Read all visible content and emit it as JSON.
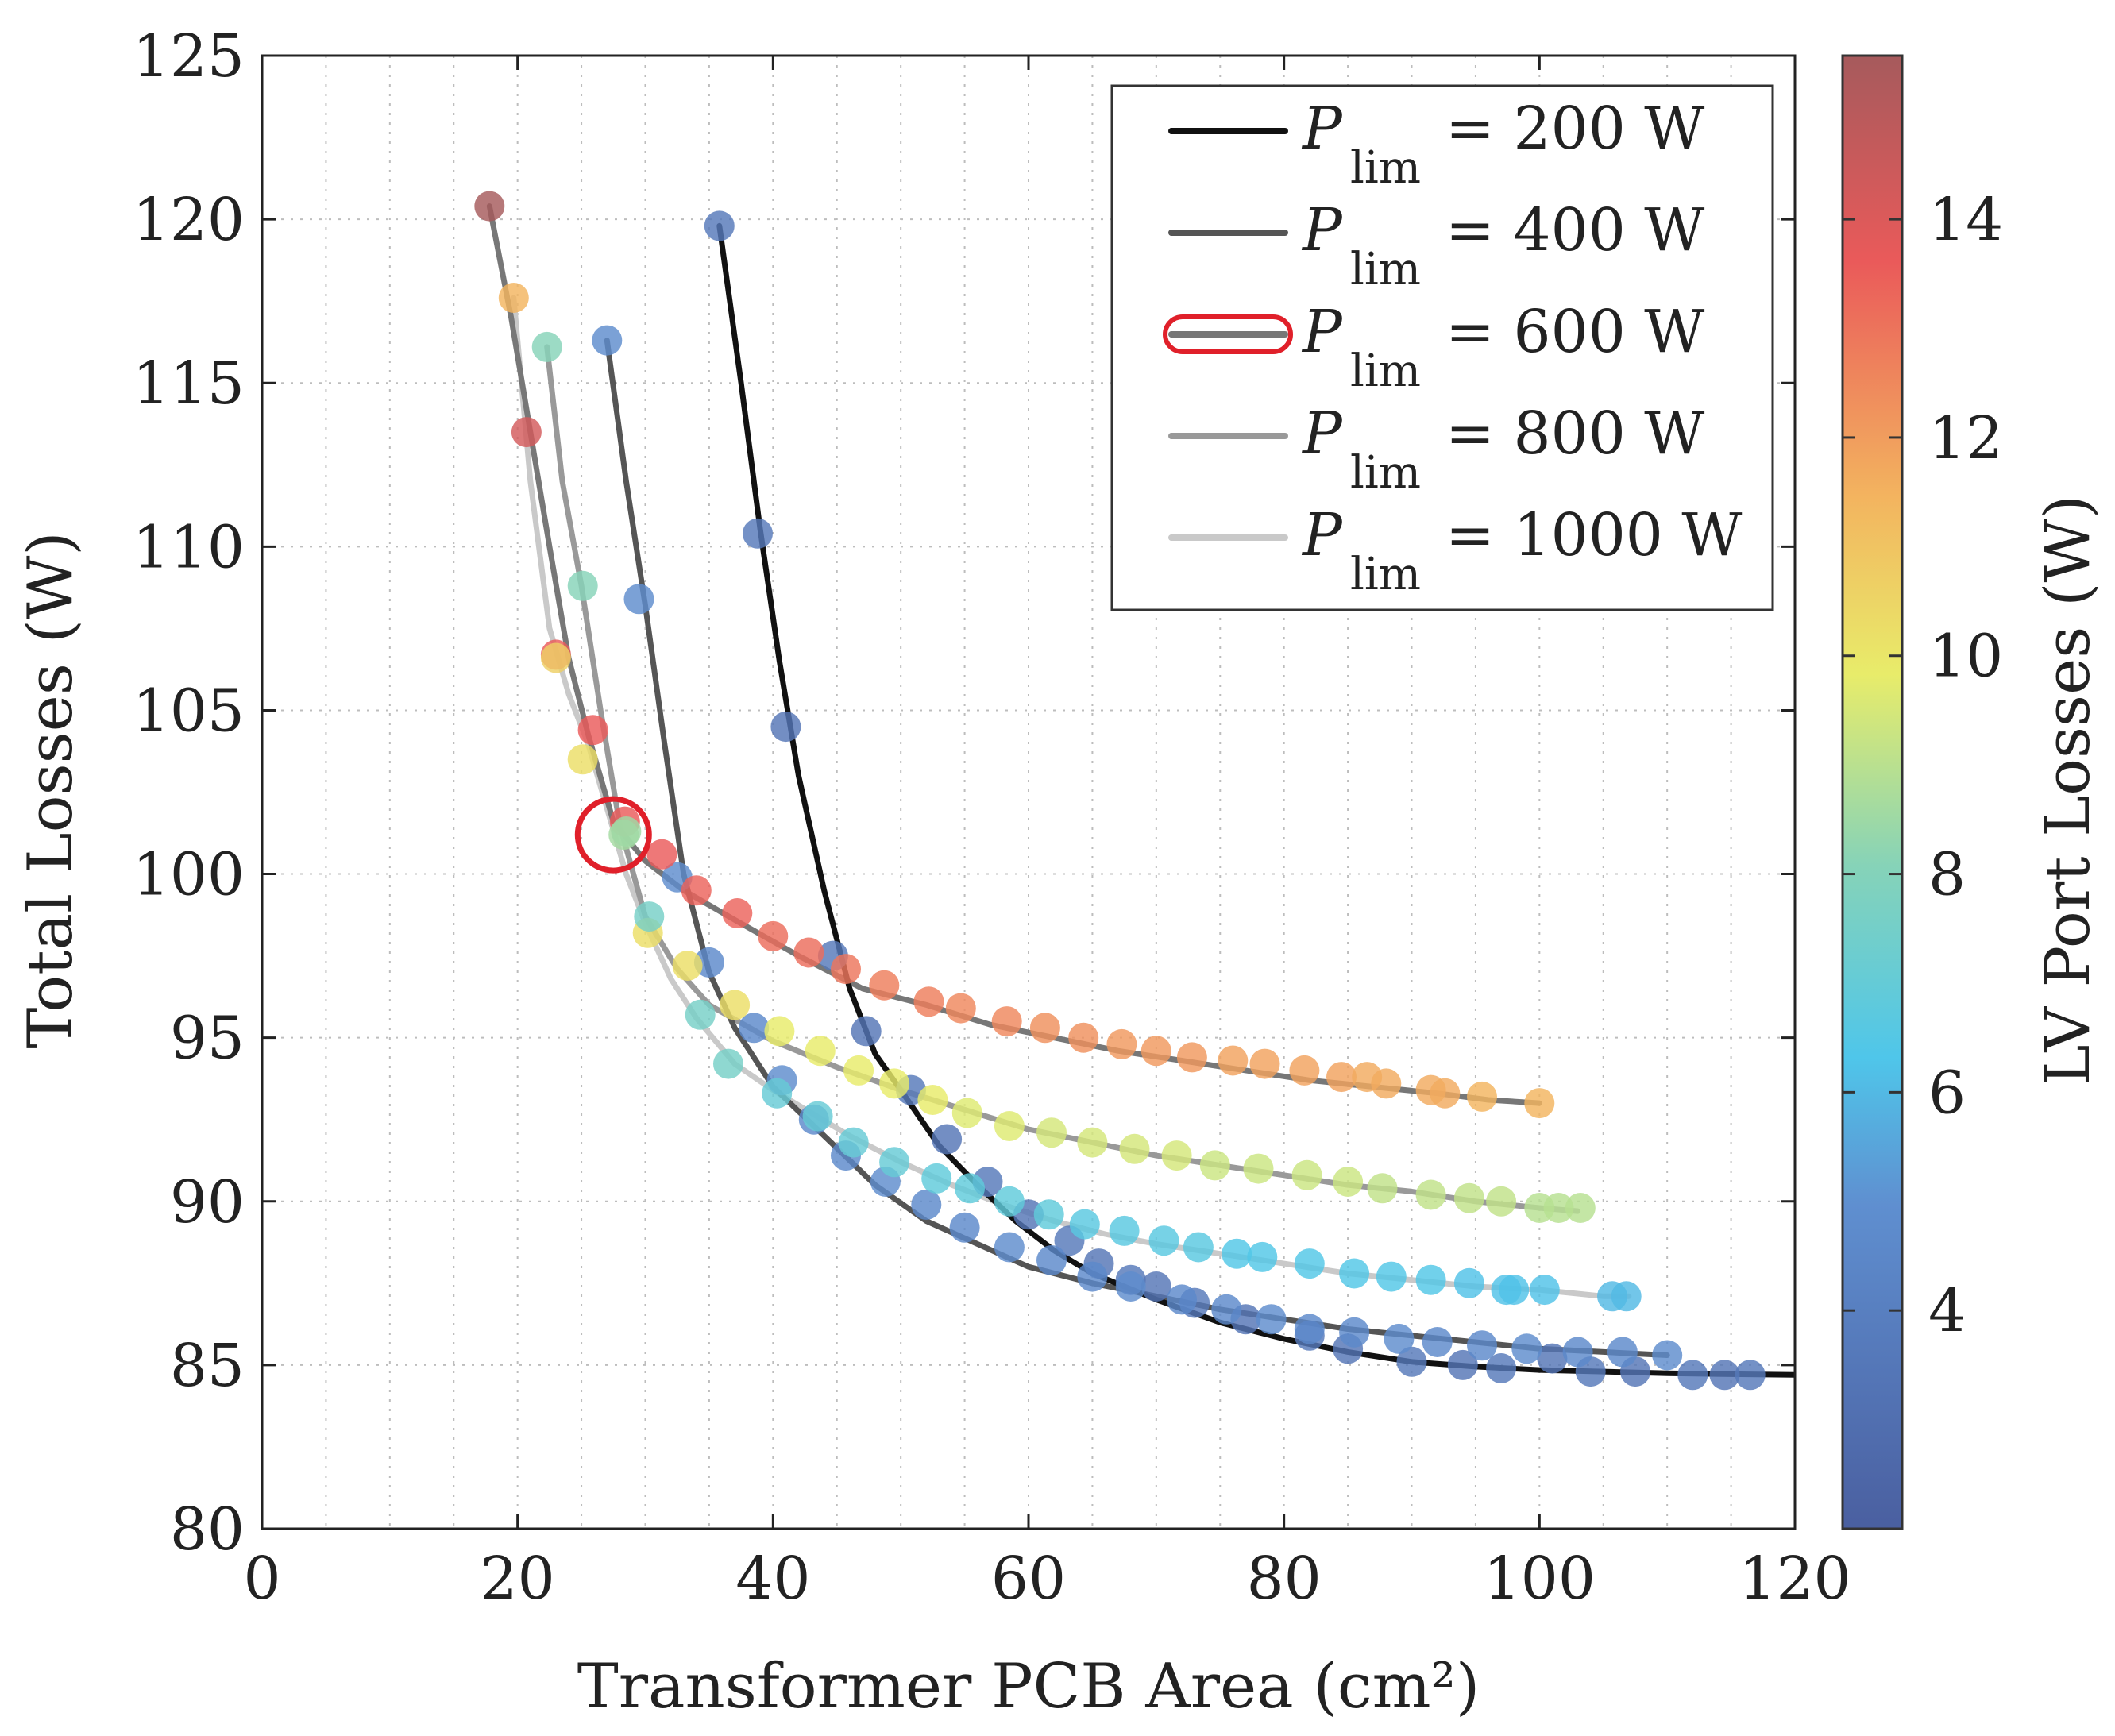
{
  "chart_data": {
    "type": "scatter",
    "title": "",
    "xlabel": "Transformer PCB Area (cm²)",
    "ylabel": "Total Losses (W)",
    "colorbar_label": "LV Port Losses (W)",
    "xlim": [
      0,
      120
    ],
    "ylim": [
      80,
      125
    ],
    "xticks": [
      0,
      20,
      40,
      60,
      80,
      100,
      120
    ],
    "yticks": [
      80,
      85,
      90,
      95,
      100,
      105,
      110,
      115,
      120,
      125
    ],
    "colorbar_range": [
      2,
      15.5
    ],
    "colorbar_ticks": [
      4,
      6,
      8,
      10,
      12,
      14
    ],
    "grid": true,
    "legend_position": "top-right",
    "legend_entries": [
      {
        "symbol": "P",
        "subscript": "lim",
        "equation": "= 200 W",
        "color": "#111111"
      },
      {
        "symbol": "P",
        "subscript": "lim",
        "equation": "= 400 W",
        "color": "#555555"
      },
      {
        "symbol": "P",
        "subscript": "lim",
        "equation": "= 600 W",
        "color": "#777777",
        "highlight": "#e0202a"
      },
      {
        "symbol": "P",
        "subscript": "lim",
        "equation": "= 800 W",
        "color": "#999999"
      },
      {
        "symbol": "P",
        "subscript": "lim",
        "equation": "= 1000 W",
        "color": "#c9c9c9"
      }
    ],
    "series": [
      {
        "line": [
          [
            35.8,
            119.8
          ],
          [
            37.5,
            115
          ],
          [
            39,
            110.5
          ],
          [
            40.5,
            106.5
          ],
          [
            42,
            103
          ],
          [
            44,
            99.5
          ],
          [
            46,
            96.5
          ],
          [
            48,
            94.5
          ],
          [
            50,
            93.4
          ],
          [
            53,
            91.7
          ],
          [
            56,
            90.5
          ],
          [
            59,
            89.4
          ],
          [
            62,
            88.5
          ],
          [
            65,
            87.8
          ],
          [
            70,
            87
          ],
          [
            75,
            86.3
          ],
          [
            80,
            85.8
          ],
          [
            85,
            85.4
          ],
          [
            90,
            85.1
          ],
          [
            95,
            84.95
          ],
          [
            100,
            84.85
          ],
          [
            105,
            84.8
          ],
          [
            110,
            84.75
          ],
          [
            115,
            84.72
          ],
          [
            120,
            84.7
          ]
        ],
        "points": [
          [
            35.8,
            119.8,
            3.6
          ],
          [
            38.8,
            110.4,
            3.6
          ],
          [
            41,
            104.5,
            3.4
          ],
          [
            44.7,
            97.5,
            3.6
          ],
          [
            47.3,
            95.2,
            3.4
          ],
          [
            50.8,
            93.4,
            3.6
          ],
          [
            53.6,
            91.9,
            3.4
          ],
          [
            56.8,
            90.6,
            3.6
          ],
          [
            60,
            89.6,
            3.4
          ],
          [
            63.2,
            88.8,
            3.6
          ],
          [
            65.5,
            88.1,
            3.4
          ],
          [
            68,
            87.6,
            3.6
          ],
          [
            70,
            87.4,
            3.4
          ],
          [
            73,
            86.9,
            3.6
          ],
          [
            77,
            86.4,
            3.4
          ],
          [
            82,
            85.9,
            3.6
          ],
          [
            85,
            85.5,
            3.4
          ],
          [
            90,
            85.1,
            3.6
          ],
          [
            94,
            85,
            3.4
          ],
          [
            97,
            84.9,
            3.6
          ],
          [
            101,
            85.2,
            3.4
          ],
          [
            104,
            84.8,
            3.6
          ],
          [
            107.5,
            84.8,
            3.4
          ],
          [
            112,
            84.7,
            3.6
          ],
          [
            114.5,
            84.7,
            3.4
          ],
          [
            116.5,
            84.7,
            3.6
          ]
        ]
      },
      {
        "line": [
          [
            27,
            116.3
          ],
          [
            28.5,
            112
          ],
          [
            30,
            108.2
          ],
          [
            31.5,
            104
          ],
          [
            33,
            100
          ],
          [
            35,
            97
          ],
          [
            37,
            95.3
          ],
          [
            40,
            93.5
          ],
          [
            44,
            92
          ],
          [
            48,
            90.5
          ],
          [
            52,
            89.4
          ],
          [
            56,
            88.7
          ],
          [
            60,
            88
          ],
          [
            65,
            87.5
          ],
          [
            70,
            87.1
          ],
          [
            75,
            86.7
          ],
          [
            80,
            86.4
          ],
          [
            85,
            86.1
          ],
          [
            90,
            85.9
          ],
          [
            95,
            85.7
          ],
          [
            100,
            85.5
          ],
          [
            105,
            85.4
          ],
          [
            110,
            85.3
          ]
        ],
        "points": [
          [
            27,
            116.3,
            4.8
          ],
          [
            29.5,
            108.4,
            4.8
          ],
          [
            32.5,
            99.9,
            4.8
          ],
          [
            35,
            97.3,
            4.6
          ],
          [
            38.5,
            95.3,
            4.6
          ],
          [
            40.7,
            93.7,
            4.8
          ],
          [
            43.2,
            92.5,
            4.6
          ],
          [
            45.7,
            91.4,
            4.6
          ],
          [
            48.8,
            90.6,
            4.8
          ],
          [
            52,
            89.9,
            4.6
          ],
          [
            55,
            89.2,
            4.6
          ],
          [
            58.5,
            88.6,
            4.8
          ],
          [
            61.8,
            88.2,
            4.6
          ],
          [
            65,
            87.7,
            4.6
          ],
          [
            68,
            87.4,
            4.8
          ],
          [
            72,
            87,
            4.6
          ],
          [
            75.5,
            86.7,
            4.6
          ],
          [
            79,
            86.4,
            4.8
          ],
          [
            82,
            86.1,
            4.6
          ],
          [
            85.5,
            86,
            4.6
          ],
          [
            89,
            85.8,
            4.8
          ],
          [
            92,
            85.7,
            4.6
          ],
          [
            95.5,
            85.6,
            4.6
          ],
          [
            99,
            85.5,
            4.8
          ],
          [
            103,
            85.4,
            4.6
          ],
          [
            106.5,
            85.4,
            4.6
          ],
          [
            110,
            85.3,
            4.8
          ]
        ]
      },
      {
        "line": [
          [
            17.8,
            120.4
          ],
          [
            19.5,
            117
          ],
          [
            21,
            113.5
          ],
          [
            22.5,
            110
          ],
          [
            24,
            106.6
          ],
          [
            25.5,
            104.3
          ],
          [
            27.5,
            101.6
          ],
          [
            30,
            100.4
          ],
          [
            33,
            99.5
          ],
          [
            37,
            98.6
          ],
          [
            42,
            97.5
          ],
          [
            47,
            96.5
          ],
          [
            52,
            96
          ],
          [
            57,
            95.4
          ],
          [
            62,
            95
          ],
          [
            67,
            94.6
          ],
          [
            72,
            94.3
          ],
          [
            77,
            94
          ],
          [
            82,
            93.7
          ],
          [
            87,
            93.5
          ],
          [
            92,
            93.3
          ],
          [
            96,
            93.1
          ],
          [
            100,
            93
          ]
        ],
        "points": [
          [
            17.8,
            120.4,
            15.5
          ],
          [
            20.7,
            113.5,
            14.5
          ],
          [
            23,
            106.7,
            14
          ],
          [
            25.9,
            104.4,
            14
          ],
          [
            28.4,
            101.6,
            14
          ],
          [
            31.3,
            100.6,
            14
          ],
          [
            34,
            99.5,
            13.8
          ],
          [
            37.2,
            98.8,
            13.8
          ],
          [
            40,
            98.1,
            13.6
          ],
          [
            42.8,
            97.6,
            13.6
          ],
          [
            45.7,
            97.1,
            13.4
          ],
          [
            48.7,
            96.6,
            13.2
          ],
          [
            52.2,
            96.1,
            13.2
          ],
          [
            54.7,
            95.9,
            13
          ],
          [
            58.3,
            95.5,
            13
          ],
          [
            61.3,
            95.3,
            12.8
          ],
          [
            64.3,
            95,
            12.8
          ],
          [
            67.3,
            94.8,
            12.6
          ],
          [
            70,
            94.6,
            12.6
          ],
          [
            72.8,
            94.4,
            12.6
          ],
          [
            76,
            94.3,
            12.4
          ],
          [
            78.5,
            94.2,
            12.4
          ],
          [
            81.6,
            94,
            12.4
          ],
          [
            84.5,
            93.8,
            12.4
          ],
          [
            86.5,
            93.8,
            12.2
          ],
          [
            88,
            93.6,
            12.2
          ],
          [
            91.5,
            93.4,
            12.2
          ],
          [
            92.6,
            93.3,
            12.2
          ],
          [
            95.5,
            93.2,
            12
          ],
          [
            100,
            93,
            12
          ]
        ]
      },
      {
        "line": [
          [
            22.3,
            116.1
          ],
          [
            23.5,
            112
          ],
          [
            25,
            108.8
          ],
          [
            26.5,
            105
          ],
          [
            28,
            101.5
          ],
          [
            30,
            98.7
          ],
          [
            32.5,
            97.1
          ],
          [
            35,
            96
          ],
          [
            40,
            94.9
          ],
          [
            45,
            94.1
          ],
          [
            50,
            93.4
          ],
          [
            55,
            92.8
          ],
          [
            60,
            92.2
          ],
          [
            65,
            91.8
          ],
          [
            70,
            91.4
          ],
          [
            75,
            91.1
          ],
          [
            80,
            90.8
          ],
          [
            85,
            90.5
          ],
          [
            90,
            90.3
          ],
          [
            95,
            90
          ],
          [
            100,
            89.8
          ],
          [
            103,
            89.7
          ]
        ],
        "points": [
          [
            22.3,
            116.1,
            8
          ],
          [
            25.1,
            108.8,
            8
          ],
          [
            25.1,
            103.5,
            10.5
          ],
          [
            28.3,
            101.2,
            8.6
          ],
          [
            30.2,
            98.2,
            10.5
          ],
          [
            33.3,
            97.2,
            10.5
          ],
          [
            37,
            96,
            10.5
          ],
          [
            40.5,
            95.2,
            10
          ],
          [
            43.7,
            94.6,
            10
          ],
          [
            46.7,
            94,
            10
          ],
          [
            49.5,
            93.6,
            10
          ],
          [
            52.5,
            93.1,
            10
          ],
          [
            55.2,
            92.7,
            9.8
          ],
          [
            58.5,
            92.3,
            9.8
          ],
          [
            61.8,
            92.1,
            9.6
          ],
          [
            65,
            91.8,
            9.6
          ],
          [
            68.3,
            91.6,
            9.6
          ],
          [
            71.6,
            91.4,
            9.6
          ],
          [
            74.6,
            91.1,
            9.4
          ],
          [
            78,
            91,
            9.4
          ],
          [
            81.8,
            90.8,
            9.4
          ],
          [
            85,
            90.6,
            9.4
          ],
          [
            87.7,
            90.4,
            9.2
          ],
          [
            91.5,
            90.2,
            9.2
          ],
          [
            94.5,
            90.1,
            9.2
          ],
          [
            97,
            90,
            9.2
          ],
          [
            100,
            89.8,
            9
          ],
          [
            101.5,
            89.8,
            9
          ],
          [
            103.2,
            89.8,
            9
          ]
        ]
      },
      {
        "line": [
          [
            19.7,
            117.6
          ],
          [
            21,
            112
          ],
          [
            22.5,
            107.5
          ],
          [
            24,
            105.5
          ],
          [
            25.5,
            104
          ],
          [
            27,
            102
          ],
          [
            28.5,
            100
          ],
          [
            30,
            98.5
          ],
          [
            32,
            96.8
          ],
          [
            34,
            95.6
          ],
          [
            37,
            94.2
          ],
          [
            40,
            93.4
          ],
          [
            43,
            92.7
          ],
          [
            46,
            92
          ],
          [
            50,
            91.2
          ],
          [
            54,
            90.5
          ],
          [
            58,
            89.9
          ],
          [
            62,
            89.4
          ],
          [
            66,
            89
          ],
          [
            70,
            88.7
          ],
          [
            75,
            88.4
          ],
          [
            80,
            88.1
          ],
          [
            85,
            87.8
          ],
          [
            90,
            87.6
          ],
          [
            95,
            87.4
          ],
          [
            100,
            87.3
          ],
          [
            105,
            87.1
          ],
          [
            107,
            87.1
          ]
        ],
        "points": [
          [
            19.7,
            117.6,
            12
          ],
          [
            23,
            106.6,
            11
          ],
          [
            28.5,
            101.3,
            8.5
          ],
          [
            30.3,
            98.7,
            7.5
          ],
          [
            34.3,
            95.7,
            7.5
          ],
          [
            36.5,
            94.2,
            7.5
          ],
          [
            40.3,
            93.3,
            7
          ],
          [
            43.5,
            92.6,
            7
          ],
          [
            46.3,
            91.8,
            7
          ],
          [
            49.5,
            91.2,
            7
          ],
          [
            52.8,
            90.7,
            6.8
          ],
          [
            55.4,
            90.4,
            6.8
          ],
          [
            58.5,
            90,
            6.8
          ],
          [
            61.6,
            89.6,
            6.8
          ],
          [
            64.4,
            89.3,
            6.6
          ],
          [
            67.5,
            89.1,
            6.6
          ],
          [
            70.6,
            88.8,
            6.6
          ],
          [
            73.3,
            88.6,
            6.6
          ],
          [
            76.3,
            88.4,
            6.4
          ],
          [
            78.3,
            88.3,
            6.4
          ],
          [
            82,
            88.1,
            6.4
          ],
          [
            85.5,
            87.8,
            6.4
          ],
          [
            88.4,
            87.7,
            6.4
          ],
          [
            91.5,
            87.6,
            6.4
          ],
          [
            94.5,
            87.5,
            6.2
          ],
          [
            97.4,
            87.3,
            6.2
          ],
          [
            98,
            87.3,
            6.2
          ],
          [
            100.4,
            87.3,
            6.2
          ],
          [
            105.7,
            87.1,
            6
          ],
          [
            106.8,
            87.1,
            6
          ]
        ]
      }
    ],
    "highlight_marker": {
      "x": 27.5,
      "y": 101.2,
      "color": "#e0202a"
    }
  }
}
